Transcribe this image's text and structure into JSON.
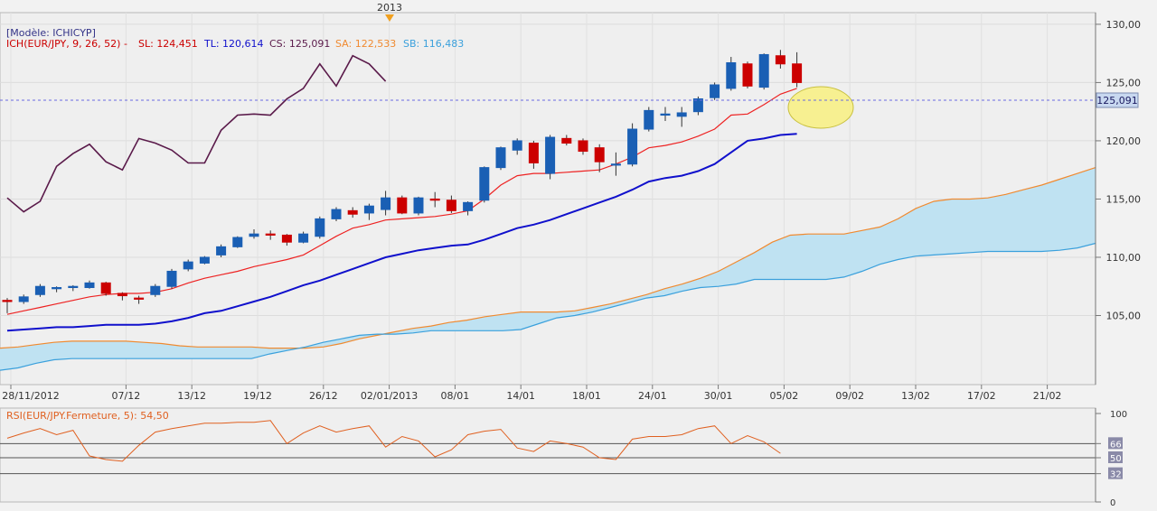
{
  "header": {
    "model_label": "[Modèle: ICHICYP]",
    "indicator_label": "ICH(EUR/JPY, 9, 26, 52) -",
    "sl_label": "SL: 124,451",
    "tl_label": "TL: 120,614",
    "cs_label": "CS: 125,091",
    "sa_label": "SA: 122,533",
    "sb_label": "SB: 116,483",
    "year_marker": "2013"
  },
  "colors": {
    "up_candle": "#1a5fb4",
    "down_candle": "#cc0000",
    "tenkan_sl": "#ee2222",
    "kijun_tl": "#1010cc",
    "chikou_cs": "#5a1a4a",
    "senkou_sa": "#f08a30",
    "senkou_sb": "#3aa0dc",
    "cloud_fill": "#bfe2f2",
    "rsi_line": "#e06020",
    "highlight": "#f8f080",
    "year_marker": "#f0a020",
    "current_price_label_bg": "#c8d8f0"
  },
  "chart_data": [
    {
      "type": "candlestick",
      "symbol": "EUR/JPY",
      "ylim": [
        100,
        131
      ],
      "y_ticks": [
        "105,00",
        "110,00",
        "115,00",
        "120,00",
        "125,00",
        "130,00"
      ],
      "x_tick_labels": [
        "28/11/2012",
        "07/12",
        "13/12",
        "19/12",
        "26/12",
        "02/01/2013",
        "08/01",
        "14/01",
        "18/01",
        "24/01",
        "30/01",
        "05/02",
        "09/02",
        "13/02",
        "17/02",
        "21/02"
      ],
      "current_price_label": "125,091",
      "grid": true,
      "candles": [
        {
          "o": 106.3,
          "h": 106.5,
          "l": 105.2,
          "c": 106.2
        },
        {
          "o": 106.2,
          "h": 106.8,
          "l": 106.0,
          "c": 106.6
        },
        {
          "o": 106.8,
          "h": 107.7,
          "l": 106.6,
          "c": 107.5
        },
        {
          "o": 107.3,
          "h": 107.5,
          "l": 107.0,
          "c": 107.4
        },
        {
          "o": 107.4,
          "h": 107.6,
          "l": 107.1,
          "c": 107.5
        },
        {
          "o": 107.4,
          "h": 108.0,
          "l": 107.3,
          "c": 107.8
        },
        {
          "o": 107.8,
          "h": 107.9,
          "l": 106.7,
          "c": 106.9
        },
        {
          "o": 106.9,
          "h": 107.0,
          "l": 106.3,
          "c": 106.7
        },
        {
          "o": 106.5,
          "h": 106.7,
          "l": 106.0,
          "c": 106.4
        },
        {
          "o": 106.8,
          "h": 107.7,
          "l": 106.6,
          "c": 107.5
        },
        {
          "o": 107.5,
          "h": 109.0,
          "l": 107.3,
          "c": 108.8
        },
        {
          "o": 109.0,
          "h": 109.8,
          "l": 108.8,
          "c": 109.6
        },
        {
          "o": 109.5,
          "h": 110.1,
          "l": 109.4,
          "c": 110.0
        },
        {
          "o": 110.2,
          "h": 111.1,
          "l": 110.0,
          "c": 110.9
        },
        {
          "o": 110.9,
          "h": 111.8,
          "l": 110.8,
          "c": 111.7
        },
        {
          "o": 111.8,
          "h": 112.4,
          "l": 111.6,
          "c": 112.0
        },
        {
          "o": 112.0,
          "h": 112.3,
          "l": 111.5,
          "c": 111.9
        },
        {
          "o": 111.9,
          "h": 112.0,
          "l": 111.0,
          "c": 111.3
        },
        {
          "o": 111.3,
          "h": 112.2,
          "l": 111.2,
          "c": 112.0
        },
        {
          "o": 111.8,
          "h": 113.5,
          "l": 111.6,
          "c": 113.3
        },
        {
          "o": 113.3,
          "h": 114.3,
          "l": 113.1,
          "c": 114.1
        },
        {
          "o": 114.0,
          "h": 114.3,
          "l": 113.4,
          "c": 113.7
        },
        {
          "o": 113.8,
          "h": 114.6,
          "l": 113.2,
          "c": 114.4
        },
        {
          "o": 114.1,
          "h": 115.7,
          "l": 113.6,
          "c": 115.1
        },
        {
          "o": 115.1,
          "h": 115.3,
          "l": 113.7,
          "c": 113.8
        },
        {
          "o": 113.8,
          "h": 115.2,
          "l": 113.6,
          "c": 115.1
        },
        {
          "o": 115.0,
          "h": 115.6,
          "l": 114.3,
          "c": 114.9
        },
        {
          "o": 114.9,
          "h": 115.3,
          "l": 113.8,
          "c": 114.0
        },
        {
          "o": 114.0,
          "h": 114.8,
          "l": 113.6,
          "c": 114.7
        },
        {
          "o": 114.9,
          "h": 117.8,
          "l": 114.7,
          "c": 117.7
        },
        {
          "o": 117.7,
          "h": 119.5,
          "l": 117.5,
          "c": 119.4
        },
        {
          "o": 119.2,
          "h": 120.2,
          "l": 118.8,
          "c": 120.0
        },
        {
          "o": 119.8,
          "h": 120.0,
          "l": 117.6,
          "c": 118.1
        },
        {
          "o": 117.2,
          "h": 120.5,
          "l": 116.7,
          "c": 120.3
        },
        {
          "o": 120.2,
          "h": 120.5,
          "l": 119.6,
          "c": 119.8
        },
        {
          "o": 120.0,
          "h": 120.2,
          "l": 118.8,
          "c": 119.1
        },
        {
          "o": 119.4,
          "h": 119.7,
          "l": 117.3,
          "c": 118.2
        },
        {
          "o": 118.0,
          "h": 119.0,
          "l": 117.0,
          "c": 118.0
        },
        {
          "o": 118.0,
          "h": 121.5,
          "l": 117.8,
          "c": 121.0
        },
        {
          "o": 121.0,
          "h": 122.9,
          "l": 120.8,
          "c": 122.6
        },
        {
          "o": 122.2,
          "h": 122.9,
          "l": 121.7,
          "c": 122.3
        },
        {
          "o": 122.1,
          "h": 122.9,
          "l": 121.2,
          "c": 122.4
        },
        {
          "o": 122.5,
          "h": 123.8,
          "l": 122.2,
          "c": 123.6
        },
        {
          "o": 123.7,
          "h": 125.0,
          "l": 123.5,
          "c": 124.8
        },
        {
          "o": 124.5,
          "h": 127.2,
          "l": 124.3,
          "c": 126.7
        },
        {
          "o": 126.6,
          "h": 126.8,
          "l": 124.5,
          "c": 124.7
        },
        {
          "o": 124.6,
          "h": 127.5,
          "l": 124.4,
          "c": 127.4
        },
        {
          "o": 127.3,
          "h": 127.8,
          "l": 126.2,
          "c": 126.6
        },
        {
          "o": 126.6,
          "h": 127.6,
          "l": 124.6,
          "c": 125.0
        }
      ],
      "series": [
        {
          "name": "SL",
          "values": [
            105.1,
            105.4,
            105.7,
            106.0,
            106.3,
            106.6,
            106.8,
            106.9,
            106.9,
            107.0,
            107.3,
            107.8,
            108.2,
            108.5,
            108.8,
            109.2,
            109.5,
            109.8,
            110.2,
            111.0,
            111.8,
            112.5,
            112.8,
            113.2,
            113.3,
            113.4,
            113.5,
            113.7,
            114.0,
            115.0,
            116.2,
            117.0,
            117.2,
            117.2,
            117.3,
            117.4,
            117.5,
            118.0,
            118.6,
            119.4,
            119.6,
            119.9,
            120.4,
            121.0,
            122.2,
            122.3,
            123.1,
            124.0,
            124.5
          ]
        },
        {
          "name": "TL",
          "values": [
            103.7,
            103.8,
            103.9,
            104.0,
            104.0,
            104.1,
            104.2,
            104.2,
            104.2,
            104.3,
            104.5,
            104.8,
            105.2,
            105.4,
            105.8,
            106.2,
            106.6,
            107.1,
            107.6,
            108.0,
            108.5,
            109.0,
            109.5,
            110.0,
            110.3,
            110.6,
            110.8,
            111.0,
            111.1,
            111.5,
            112.0,
            112.5,
            112.8,
            113.2,
            113.7,
            114.2,
            114.7,
            115.2,
            115.8,
            116.5,
            116.8,
            117.0,
            117.4,
            118.0,
            119.0,
            120.0,
            120.2,
            120.5,
            120.6
          ]
        },
        {
          "name": "CS",
          "values": [
            115.1,
            113.9,
            114.8,
            117.8,
            118.9,
            119.7,
            118.2,
            117.5,
            120.2,
            119.8,
            119.2,
            118.1,
            118.1,
            120.9,
            122.2,
            122.3,
            122.2,
            123.6,
            124.5,
            126.6,
            124.7,
            127.3,
            126.6,
            125.1
          ]
        },
        {
          "name": "SA",
          "values": [
            102.2,
            102.3,
            102.5,
            102.7,
            102.8,
            102.8,
            102.8,
            102.8,
            102.7,
            102.6,
            102.4,
            102.3,
            102.3,
            102.3,
            102.3,
            102.2,
            102.2,
            102.2,
            102.3,
            102.6,
            103.0,
            103.3,
            103.6,
            103.9,
            104.1,
            104.4,
            104.6,
            104.9,
            105.1,
            105.3,
            105.3,
            105.3,
            105.4,
            105.7,
            106.0,
            106.4,
            106.8,
            107.3,
            107.7,
            108.2,
            108.8,
            109.6,
            110.4,
            111.3,
            111.9,
            112.0,
            112.0,
            112.0,
            112.3,
            112.6,
            113.3,
            114.2,
            114.8,
            115.0,
            115.0,
            115.1,
            115.4,
            115.8,
            116.2,
            116.7,
            117.2,
            117.7
          ]
        },
        {
          "name": "SB",
          "values": [
            100.3,
            100.5,
            100.9,
            101.2,
            101.3,
            101.3,
            101.3,
            101.3,
            101.3,
            101.3,
            101.3,
            101.3,
            101.3,
            101.3,
            101.3,
            101.7,
            102.0,
            102.3,
            102.7,
            103.0,
            103.3,
            103.4,
            103.4,
            103.5,
            103.7,
            103.7,
            103.7,
            103.7,
            103.7,
            103.8,
            104.3,
            104.8,
            105.0,
            105.3,
            105.7,
            106.1,
            106.5,
            106.7,
            107.1,
            107.4,
            107.5,
            107.7,
            108.1,
            108.1,
            108.1,
            108.1,
            108.1,
            108.3,
            108.8,
            109.4,
            109.8,
            110.1,
            110.2,
            110.3,
            110.4,
            110.5,
            110.5,
            110.5,
            110.5,
            110.6,
            110.8,
            111.2
          ]
        }
      ]
    },
    {
      "type": "line",
      "title": "RSI(EUR/JPY.Fermeture, 5): 54,50",
      "ylim": [
        0,
        100
      ],
      "y_ticks": [
        "0",
        "32",
        "50",
        "66",
        "100"
      ],
      "reference_levels": [
        32,
        50,
        66
      ],
      "series": [
        {
          "name": "RSI",
          "values": [
            72,
            78,
            83,
            76,
            81,
            52,
            48,
            46,
            64,
            79,
            83,
            86,
            89,
            89,
            90,
            90,
            92,
            66,
            78,
            86,
            79,
            83,
            86,
            62,
            74,
            69,
            51,
            59,
            76,
            80,
            82,
            61,
            57,
            69,
            66,
            62,
            50,
            48,
            71,
            74,
            74,
            76,
            83,
            86,
            66,
            75,
            68,
            55
          ]
        }
      ]
    }
  ]
}
